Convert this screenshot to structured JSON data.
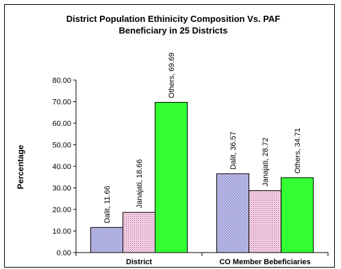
{
  "chart_data": {
    "type": "bar",
    "title_lines": [
      "District Population Ethinicity Composition Vs. PAF",
      "Beneficiary in 25 Districts"
    ],
    "ylabel": "Percentage",
    "xlabel": "",
    "ylim": [
      0,
      80
    ],
    "yticks": [
      "0.00",
      "10.00",
      "20.00",
      "30.00",
      "40.00",
      "50.00",
      "60.00",
      "70.00",
      "80.00"
    ],
    "grid": false,
    "legend": "none",
    "categories": [
      "District",
      "CO Member Bebeficiaries"
    ],
    "series": [
      {
        "name": "Dalit",
        "values": [
          11.66,
          36.57
        ],
        "pattern": "crosshatch-blue"
      },
      {
        "name": "Janajati",
        "values": [
          18.66,
          28.72
        ],
        "pattern": "dotted-pink"
      },
      {
        "name": "Others",
        "values": [
          69.69,
          34.71
        ],
        "pattern": "solid-green",
        "color": "#33ff33"
      }
    ],
    "data_labels": [
      [
        "Dalit, 11.66",
        "Dalit, 36.57"
      ],
      [
        "Janajati, 18.66",
        "Janajati, 28.72"
      ],
      [
        "Others, 69.69",
        "Others, 34.71"
      ]
    ]
  }
}
